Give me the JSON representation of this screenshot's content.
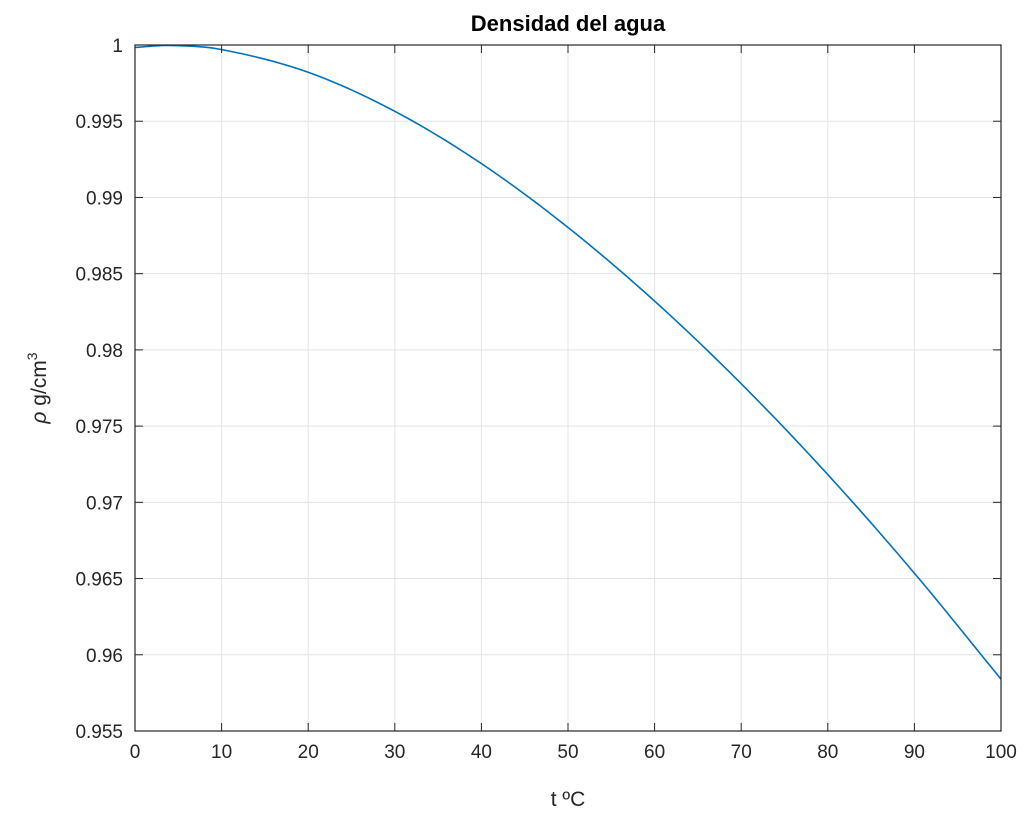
{
  "chart_data": {
    "type": "line",
    "title": "Densidad del agua",
    "xlabel": "t ºC",
    "ylabel": {
      "rho": "ρ",
      "units": " g/cm",
      "superscript": "3"
    },
    "xlim": [
      0,
      100
    ],
    "ylim": [
      0.955,
      1.0
    ],
    "grid": true,
    "x_ticks": [
      0,
      10,
      20,
      30,
      40,
      50,
      60,
      70,
      80,
      90,
      100
    ],
    "x_tick_labels": [
      "0",
      "10",
      "20",
      "30",
      "40",
      "50",
      "60",
      "70",
      "80",
      "90",
      "100"
    ],
    "y_ticks": [
      0.955,
      0.96,
      0.965,
      0.97,
      0.975,
      0.98,
      0.985,
      0.99,
      0.995,
      1.0
    ],
    "y_tick_labels": [
      "0.955",
      "0.96",
      "0.965",
      "0.97",
      "0.975",
      "0.98",
      "0.985",
      "0.99",
      "0.995",
      "1"
    ],
    "series": [
      {
        "color": "#0072bd",
        "x": [
          0,
          4,
          10,
          20,
          30,
          40,
          50,
          60,
          70,
          80,
          90,
          100
        ],
        "y": [
          0.99984,
          0.99997,
          0.9997,
          0.99821,
          0.99565,
          0.99222,
          0.98803,
          0.9832,
          0.97778,
          0.97182,
          0.96535,
          0.9584
        ]
      }
    ]
  },
  "colors": {
    "grid": "#e3e3e3",
    "axes": "#262626",
    "background": "#ffffff"
  }
}
